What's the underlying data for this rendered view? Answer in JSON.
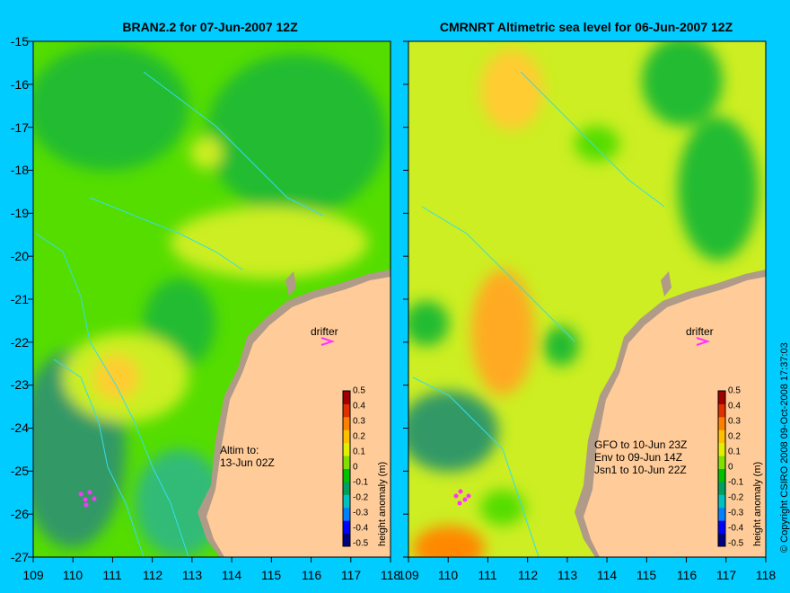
{
  "left_panel": {
    "title": "BRAN2.2 for 07-Jun-2007 12Z",
    "drifter_label": "drifter",
    "annotation_lines": [
      "Altim to:",
      "13-Jun 02Z"
    ]
  },
  "right_panel": {
    "title": "CMRNRT Altimetric sea level  for 06-Jun-2007 12Z",
    "drifter_label": "drifter",
    "annotation_lines": [
      "GFO to 10-Jun 23Z",
      "Env to 09-Jun 14Z",
      "Jsn1 to 10-Jun 22Z"
    ]
  },
  "axes": {
    "lat_labels": [
      "-15",
      "-16",
      "-17",
      "-18",
      "-19",
      "-20",
      "-21",
      "-22",
      "-23",
      "-24",
      "-25",
      "-26",
      "-27"
    ],
    "lon_labels": [
      "109",
      "110",
      "111",
      "112",
      "113",
      "114",
      "115",
      "116",
      "117",
      "118"
    ]
  },
  "colorbar": {
    "title": "height anomaly (m)",
    "ticks": [
      "0.5",
      "0.4",
      "0.3",
      "0.2",
      "0.1",
      "0",
      "-0.1",
      "-0.2",
      "-0.3",
      "-0.4",
      "-0.5"
    ],
    "colors": [
      "#000080",
      "#0000ff",
      "#0080ff",
      "#00c0c0",
      "#00a060",
      "#00c000",
      "#80e000",
      "#e0f000",
      "#ffc000",
      "#ff8000",
      "#e03000",
      "#a00000"
    ]
  },
  "copyright": "© Copyright CSIRO 2008   09-Oct-2008 17:37:03",
  "colors": {
    "background": "#00ccff",
    "land": "#ffcc99",
    "shelf": "#b09a88",
    "drifter": "#ff33ff"
  }
}
